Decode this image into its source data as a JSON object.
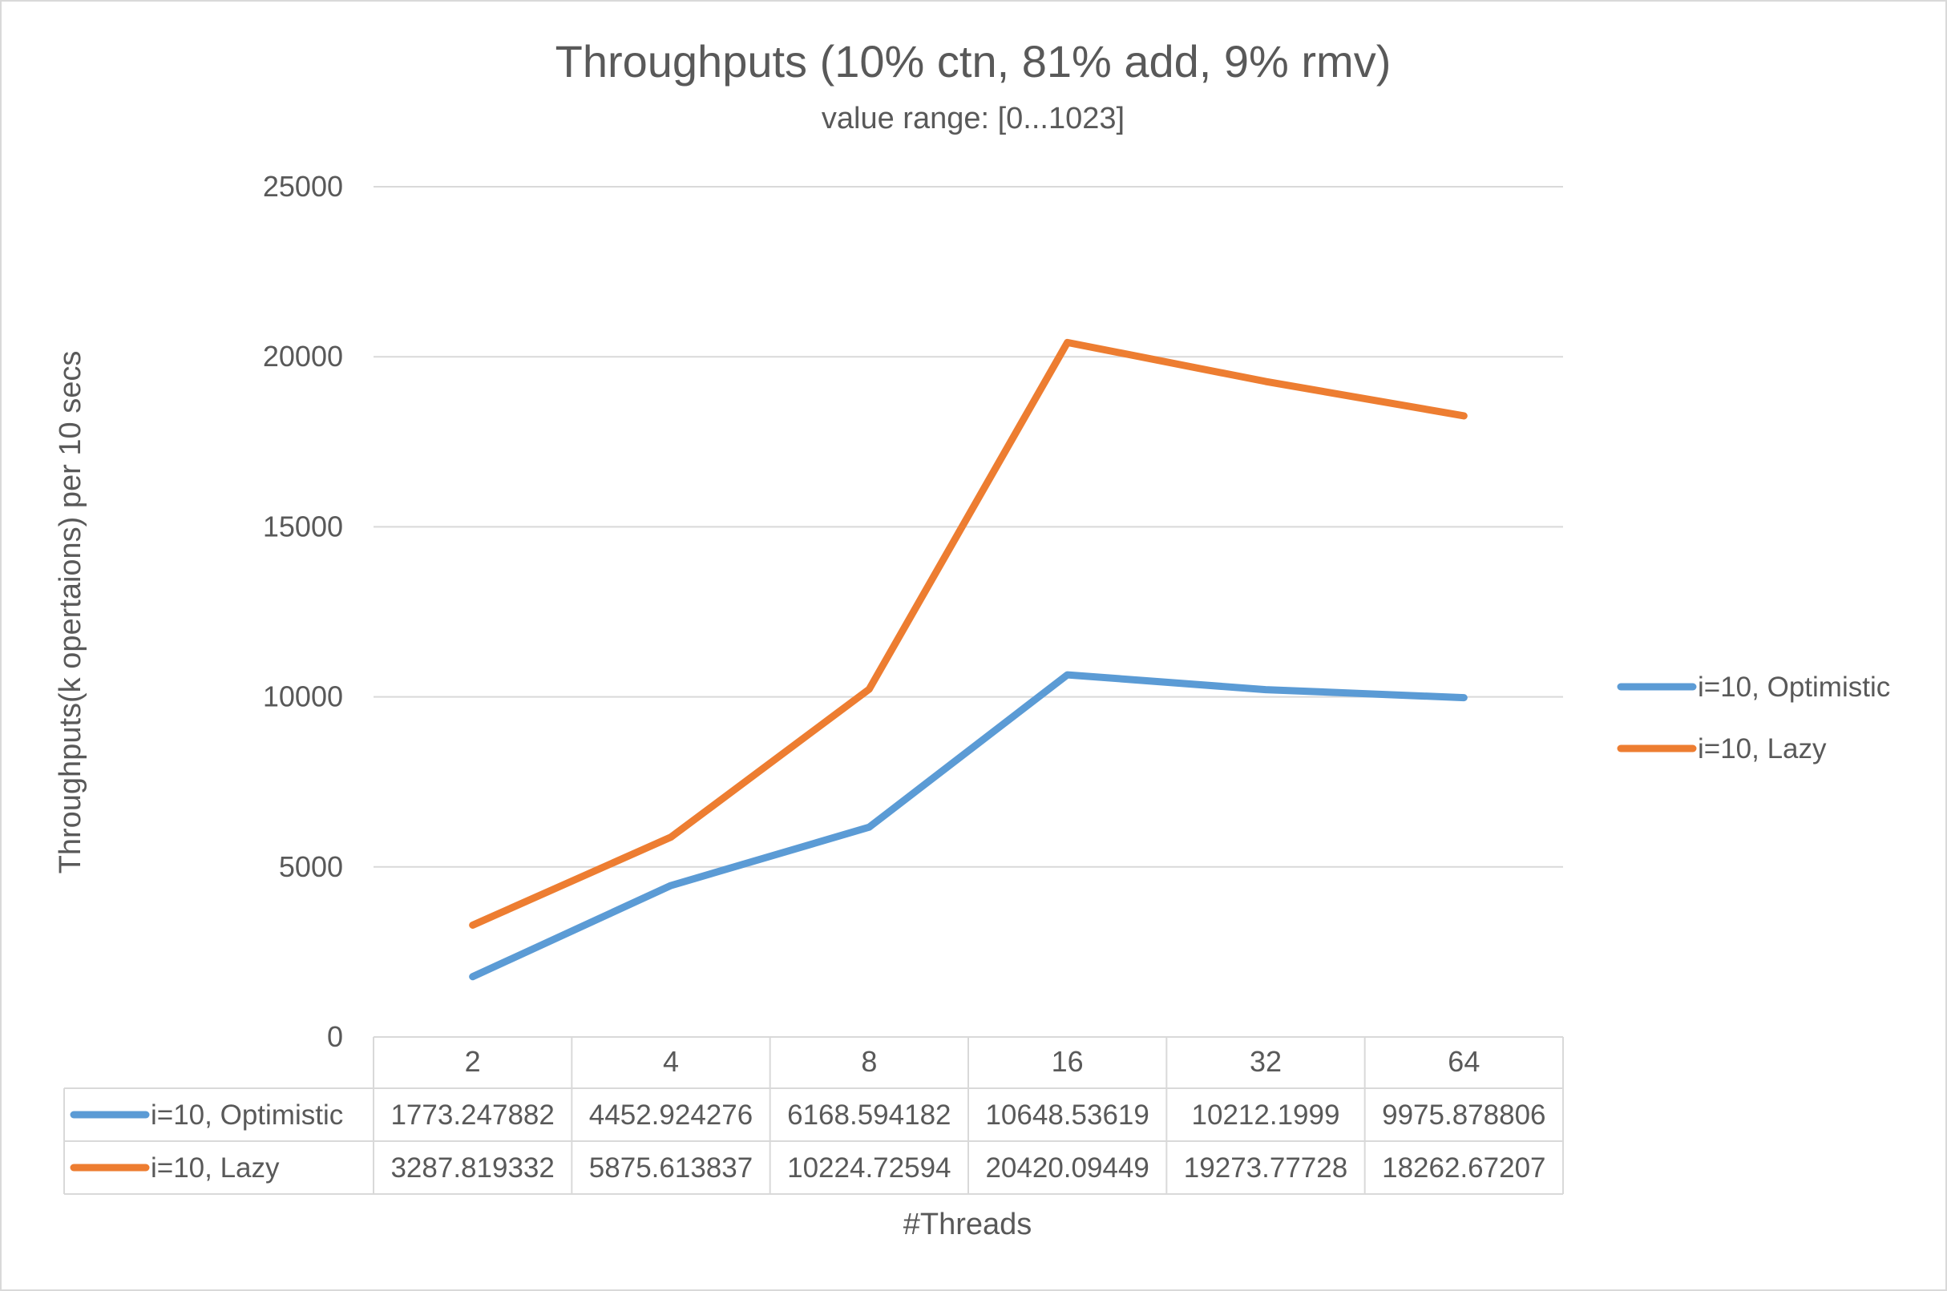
{
  "chart_data": {
    "type": "line",
    "title": "Throughputs (10% ctn, 81% add, 9% rmv)",
    "subtitle": "value range: [0...1023]",
    "xlabel": "#Threads",
    "ylabel": "Throughputs(k opertaions) per 10 secs",
    "categories": [
      "2",
      "4",
      "8",
      "16",
      "32",
      "64"
    ],
    "ylim": [
      0,
      25000
    ],
    "yticks": [
      "0",
      "5000",
      "10000",
      "15000",
      "20000",
      "25000"
    ],
    "grid": true,
    "legend_position": "right",
    "data_table": true,
    "series": [
      {
        "name": "i=10, Optimistic",
        "color": "#5B9BD5",
        "values": [
          1773.247882,
          4452.924276,
          6168.594182,
          10648.53619,
          10212.1999,
          9975.878806
        ],
        "labels": [
          "1773.247882",
          "4452.924276",
          "6168.594182",
          "10648.53619",
          "10212.1999",
          "9975.878806"
        ]
      },
      {
        "name": "i=10, Lazy",
        "color": "#ED7D31",
        "values": [
          3287.819332,
          5875.613837,
          10224.72594,
          20420.09449,
          19273.77728,
          18262.67207
        ],
        "labels": [
          "3287.819332",
          "5875.613837",
          "10224.72594",
          "20420.09449",
          "19273.77728",
          "18262.67207"
        ]
      }
    ]
  }
}
